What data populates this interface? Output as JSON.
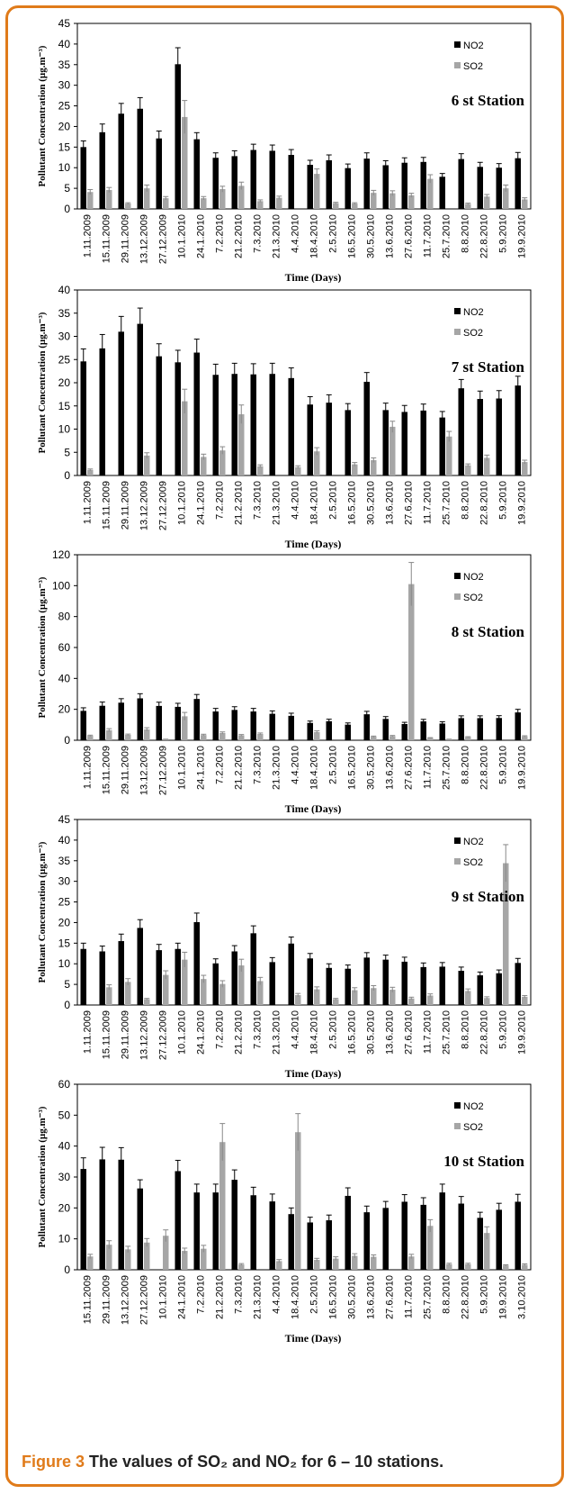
{
  "caption": {
    "figure_label": "Figure 3",
    "text": "The values of SO₂ and NO₂ for 6 – 10 stations."
  },
  "colors": {
    "no2": "#000000",
    "so2": "#a6a6a6",
    "frame": "#e07b1a"
  },
  "chart_data": [
    {
      "type": "bar",
      "title": "6 st Station",
      "xlabel": "Time (Days)",
      "ylabel": "Pollutant Concentration (µg.m⁻³)",
      "ylim": [
        0,
        45
      ],
      "yticks": [
        0,
        5,
        10,
        15,
        20,
        25,
        30,
        35,
        40,
        45
      ],
      "categories": [
        "1.11.2009",
        "15.11.2009",
        "29.11.2009",
        "13.12.2009",
        "27.12.2009",
        "10.1.2010",
        "24.1.2010",
        "7.2.2010",
        "21.2.2010",
        "7.3.2010",
        "21.3.2010",
        "4.4.2010",
        "18.4.2010",
        "2.5.2010",
        "16.5.2010",
        "30.5.2010",
        "13.6.2010",
        "27.6.2010",
        "11.7.2010",
        "25.7.2010",
        "8.8.2010",
        "22.8.2010",
        "5.9.2010",
        "19.9.2010"
      ],
      "series": [
        {
          "name": "NO2",
          "values": [
            15,
            18.6,
            23.1,
            24.3,
            17.1,
            35.1,
            16.9,
            12.4,
            12.8,
            14.3,
            14.1,
            13.1,
            10.7,
            11.8,
            9.9,
            12.2,
            10.6,
            11.2,
            11.4,
            7.8,
            12.1,
            10.2,
            10,
            12.3
          ],
          "errors": [
            1.5,
            2,
            2.5,
            2.7,
            1.8,
            4,
            1.6,
            1.2,
            1.3,
            1.4,
            1.4,
            1.3,
            1.1,
            1.3,
            1,
            1.4,
            1.1,
            1.2,
            1.1,
            0.8,
            1.3,
            1.1,
            1,
            1.4
          ]
        },
        {
          "name": "SO2",
          "values": [
            4.1,
            4.6,
            1.3,
            5,
            2.6,
            22.3,
            2.6,
            4.8,
            5.6,
            1.9,
            2.7,
            0,
            8.5,
            1.4,
            1.3,
            3.9,
            3.8,
            3.3,
            7.3,
            0,
            1.2,
            3,
            5,
            2.3
          ],
          "errors": [
            0.6,
            0.6,
            0.2,
            0.8,
            0.4,
            4,
            0.4,
            0.7,
            0.9,
            0.3,
            0.4,
            0,
            1.2,
            0.2,
            0.2,
            0.6,
            0.6,
            0.5,
            1,
            0,
            0.2,
            0.5,
            0.8,
            0.4
          ]
        }
      ],
      "legend": "top-right"
    },
    {
      "type": "bar",
      "title": "7 st Station",
      "xlabel": "Time (Days)",
      "ylabel": "Pollutant Concentration (µg.m⁻³)",
      "ylim": [
        0,
        40
      ],
      "yticks": [
        0,
        5,
        10,
        15,
        20,
        25,
        30,
        35,
        40
      ],
      "categories": [
        "1.11.2009",
        "15.11.2009",
        "29.11.2009",
        "13.12.2009",
        "27.12.2009",
        "10.1.2010",
        "24.1.2010",
        "7.2.2010",
        "21.2.2010",
        "7.3.2010",
        "21.3.2010",
        "4.4.2010",
        "18.4.2010",
        "2.5.2010",
        "16.5.2010",
        "30.5.2010",
        "13.6.2010",
        "27.6.2010",
        "11.7.2010",
        "25.7.2010",
        "8.8.2010",
        "22.8.2010",
        "5.9.2010",
        "19.9.2010"
      ],
      "series": [
        {
          "name": "NO2",
          "values": [
            24.6,
            27.4,
            31,
            32.7,
            25.7,
            24.4,
            26.5,
            21.7,
            21.9,
            21.8,
            21.9,
            21,
            15.3,
            15.7,
            14.1,
            20.2,
            14.1,
            13.7,
            14,
            12.5,
            18.8,
            16.5,
            16.6,
            19.4
          ],
          "errors": [
            2.7,
            3,
            3.3,
            3.4,
            2.7,
            2.6,
            2.9,
            2.3,
            2.3,
            2.3,
            2.3,
            2.2,
            1.7,
            1.7,
            1.4,
            2,
            1.5,
            1.4,
            1.4,
            1.3,
            1.9,
            1.7,
            1.7,
            2
          ]
        },
        {
          "name": "SO2",
          "values": [
            1.2,
            0,
            0,
            4.3,
            0,
            16,
            4,
            5.4,
            13.2,
            2,
            0,
            1.8,
            5.2,
            0,
            2.4,
            3.3,
            10.5,
            0,
            0,
            8.4,
            2.2,
            3.8,
            0,
            2.9
          ],
          "errors": [
            0.2,
            0,
            0,
            0.6,
            0,
            2.6,
            0.6,
            0.8,
            2,
            0.3,
            0,
            0.3,
            0.8,
            0,
            0.4,
            0.5,
            1.2,
            0,
            0,
            1.1,
            0.3,
            0.6,
            0,
            0.4
          ]
        }
      ],
      "legend": "top-right"
    },
    {
      "type": "bar",
      "title": "8 st Station",
      "xlabel": "Time (Days)",
      "ylabel": "Pollutant Concentration (µg.m⁻³)",
      "ylim": [
        0,
        120
      ],
      "yticks": [
        0,
        20,
        40,
        60,
        80,
        100,
        120
      ],
      "categories": [
        "1.11.2009",
        "15.11.2009",
        "29.11.2009",
        "13.12.2009",
        "27.12.2009",
        "10.1.2010",
        "24.1.2010",
        "7.2.2010",
        "21.2.2010",
        "7.3.2010",
        "21.3.2010",
        "4.4.2010",
        "18.4.2010",
        "2.5.2010",
        "16.5.2010",
        "30.5.2010",
        "13.6.2010",
        "27.6.2010",
        "11.7.2010",
        "25.7.2010",
        "8.8.2010",
        "22.8.2010",
        "5.9.2010",
        "19.9.2010"
      ],
      "series": [
        {
          "name": "NO2",
          "values": [
            19,
            22.3,
            24.3,
            27.1,
            22.2,
            21.6,
            26.7,
            18.6,
            19.6,
            18.6,
            17.1,
            15.8,
            11.2,
            12.3,
            10.1,
            16.8,
            13.8,
            10.5,
            12.2,
            10.8,
            14.3,
            14.3,
            14.4,
            18
          ],
          "errors": [
            2,
            2.4,
            2.6,
            3,
            2.4,
            2.3,
            2.9,
            2,
            2.1,
            2,
            1.9,
            1.7,
            1.2,
            1.3,
            1.1,
            1.9,
            1.5,
            1.1,
            1.3,
            1.2,
            1.5,
            1.5,
            1.5,
            2
          ]
        },
        {
          "name": "SO2",
          "values": [
            2.9,
            6.5,
            3.5,
            7,
            0.6,
            15.5,
            3.4,
            4.7,
            3.2,
            4.1,
            0,
            0,
            5.3,
            0,
            0,
            2.3,
            2.7,
            101,
            1.5,
            0.6,
            2,
            0,
            0,
            2.5
          ],
          "errors": [
            0.4,
            1,
            0.5,
            1.1,
            0.1,
            2.5,
            0.5,
            0.7,
            0.5,
            0.6,
            0,
            0,
            0.8,
            0,
            0,
            0.4,
            0.4,
            14,
            0.2,
            0.1,
            0.3,
            0,
            0,
            0.4
          ]
        }
      ],
      "legend": "top-right"
    },
    {
      "type": "bar",
      "title": "9 st Station",
      "xlabel": "Time (Days)",
      "ylabel": "Pollutant Concentration (µg.m⁻³)",
      "ylim": [
        0,
        45
      ],
      "yticks": [
        0,
        5,
        10,
        15,
        20,
        25,
        30,
        35,
        40,
        45
      ],
      "categories": [
        "1.11.2009",
        "15.11.2009",
        "29.11.2009",
        "13.12.2009",
        "27.12.2009",
        "10.1.2010",
        "24.1.2010",
        "7.2.2010",
        "21.2.2010",
        "7.3.2010",
        "21.3.2010",
        "4.4.2010",
        "18.4.2010",
        "2.5.2010",
        "16.5.2010",
        "30.5.2010",
        "13.6.2010",
        "27.6.2010",
        "11.7.2010",
        "25.7.2010",
        "8.8.2010",
        "22.8.2010",
        "5.9.2010",
        "19.9.2010"
      ],
      "series": [
        {
          "name": "NO2",
          "values": [
            13.6,
            13,
            15.5,
            18.7,
            13.3,
            13.6,
            20.1,
            10.1,
            13,
            17.4,
            10.4,
            14.9,
            11.3,
            9,
            8.8,
            11.5,
            11,
            10.5,
            9.2,
            9.3,
            8.3,
            7.2,
            7.7,
            10.2
          ],
          "errors": [
            1.4,
            1.3,
            1.7,
            2,
            1.4,
            1.4,
            2.2,
            1.1,
            1.4,
            1.8,
            1.1,
            1.6,
            1.2,
            1,
            0.9,
            1.2,
            1.1,
            1.1,
            1,
            1,
            0.9,
            0.8,
            0.8,
            1.1
          ]
        },
        {
          "name": "SO2",
          "values": [
            0,
            4.3,
            5.6,
            1.4,
            7.3,
            11,
            6.3,
            5.1,
            9.6,
            5.8,
            0,
            2.4,
            3.8,
            1.4,
            3.6,
            4.1,
            3.7,
            1.6,
            2.3,
            0,
            3.4,
            1.7,
            34.4,
            2
          ],
          "errors": [
            0,
            0.6,
            0.8,
            0.2,
            1,
            1.8,
            0.9,
            0.8,
            1.5,
            0.9,
            0,
            0.4,
            0.6,
            0.2,
            0.6,
            0.6,
            0.6,
            0.3,
            0.4,
            0,
            0.5,
            0.3,
            4.5,
            0.3
          ]
        }
      ],
      "legend": "top-right"
    },
    {
      "type": "bar",
      "title": "10 st Station",
      "xlabel": "Time (Days)",
      "ylabel": "Pollutant Concentration (µg.m⁻³)",
      "ylim": [
        0,
        60
      ],
      "yticks": [
        0,
        10,
        20,
        30,
        40,
        50,
        60
      ],
      "categories": [
        "15.11.2009",
        "29.11.2009",
        "13.12.2009",
        "27.12.2009",
        "10.1.2010",
        "24.1.2010",
        "7.2.2010",
        "21.2.2010",
        "7.3.2010",
        "21.3.2010",
        "4.4.2010",
        "18.4.2010",
        "2.5.2010",
        "16.5.2010",
        "30.5.2010",
        "13.6.2010",
        "27.6.2010",
        "11.7.2010",
        "25.7.2010",
        "8.8.2010",
        "22.8.2010",
        "5.9.2010",
        "19.9.2010",
        "3.10.2010"
      ],
      "series": [
        {
          "name": "NO2",
          "values": [
            32.6,
            35.7,
            35.6,
            26.3,
            0,
            31.9,
            25,
            25,
            29.1,
            24.1,
            22.1,
            18,
            15.3,
            16,
            23.9,
            18.6,
            20,
            22,
            21,
            25,
            21.4,
            16.8,
            19.4,
            22
          ],
          "errors": [
            3.6,
            3.9,
            3.9,
            2.8,
            0,
            3.5,
            2.7,
            2.7,
            3.2,
            2.6,
            2.4,
            2,
            1.7,
            1.7,
            2.6,
            2,
            2.1,
            2.3,
            2.3,
            2.7,
            2.3,
            1.8,
            2.1,
            2.4
          ]
        },
        {
          "name": "SO2",
          "values": [
            4.3,
            8.1,
            6.6,
            8.8,
            11,
            6.1,
            6.8,
            41.3,
            1.7,
            0,
            2.8,
            44.5,
            3.2,
            3.6,
            4.5,
            4.2,
            0,
            4.3,
            14.2,
            1.8,
            1.8,
            11.9,
            1.4,
            1.6
          ],
          "errors": [
            0.7,
            1.3,
            1,
            1.3,
            1.9,
            0.9,
            1.1,
            6,
            0.3,
            0,
            0.5,
            6,
            0.5,
            0.6,
            0.7,
            0.6,
            0,
            0.7,
            2,
            0.3,
            0.3,
            2,
            0.2,
            0.3
          ]
        }
      ],
      "legend": "top-right"
    }
  ]
}
